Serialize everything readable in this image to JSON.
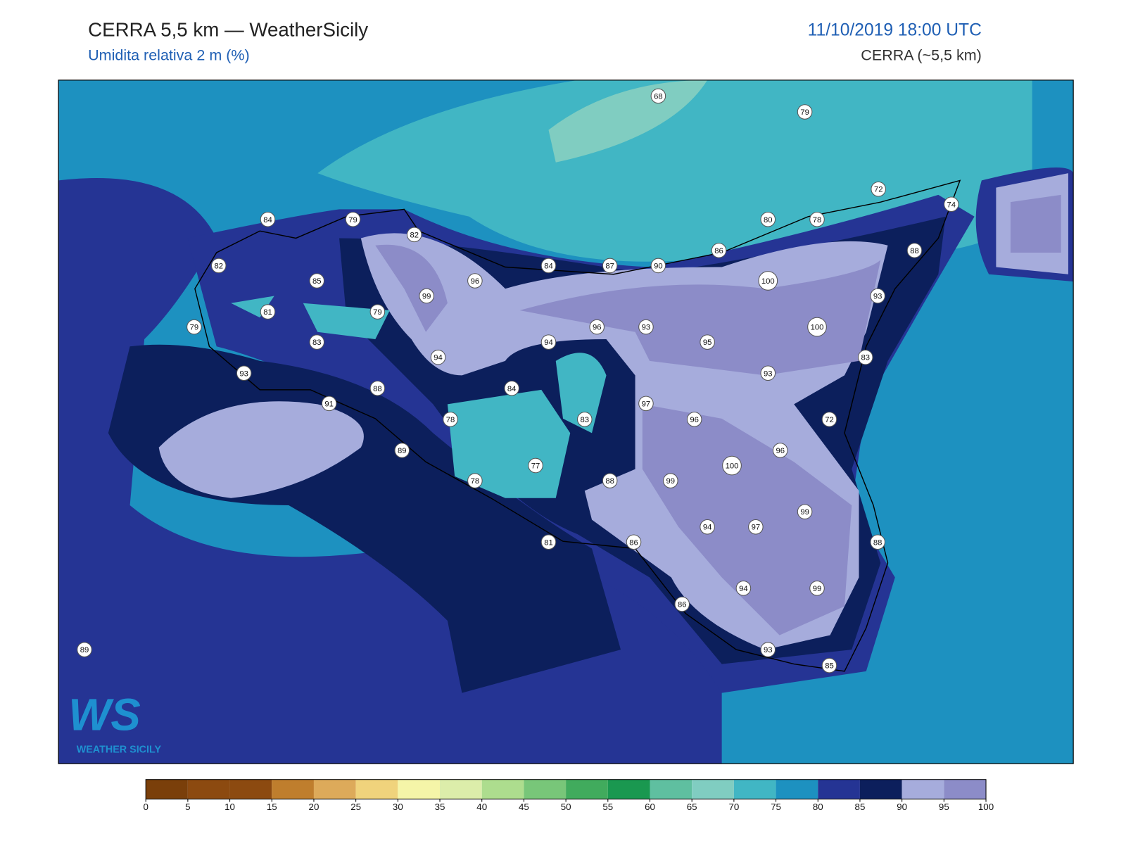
{
  "header": {
    "title": "CERRA 5,5 km — WeatherSicily",
    "subtitle": "Umidita relativa 2 m (%)",
    "date": "11/10/2019 18:00 UTC",
    "model": "CERRA (~5,5 km)"
  },
  "stations": [
    68,
    79,
    72,
    74,
    84,
    79,
    82,
    80,
    78,
    82,
    86,
    88,
    84,
    87,
    90,
    85,
    96,
    100,
    99,
    93,
    81,
    79,
    79,
    96,
    93,
    100,
    94,
    95,
    83,
    94,
    83,
    93,
    93,
    88,
    84,
    91,
    97,
    78,
    83,
    96,
    72,
    96,
    89,
    77,
    100,
    78,
    88,
    99,
    99,
    94,
    97,
    81,
    86,
    88,
    94,
    99,
    86,
    93,
    85,
    89
  ],
  "colorbar": {
    "ticks": [
      0,
      5,
      10,
      15,
      20,
      25,
      30,
      35,
      40,
      45,
      50,
      55,
      60,
      65,
      70,
      75,
      80,
      85,
      90,
      95,
      100
    ],
    "colors": [
      "#7a3f0a",
      "#8c4a10",
      "#8c4a10",
      "#bf7e2d",
      "#ddaa5a",
      "#f0d37c",
      "#f5f5a8",
      "#dcedaa",
      "#addd8e",
      "#78c679",
      "#41ab5d",
      "#1a9850",
      "#5fbfa0",
      "#80cdc1",
      "#41b6c4",
      "#1d91c0",
      "#253494",
      "#0c1f5c",
      "#a6acdc",
      "#8c8cc8"
    ]
  },
  "logo": {
    "mark": "WS",
    "name": "WEATHER SICILY"
  }
}
